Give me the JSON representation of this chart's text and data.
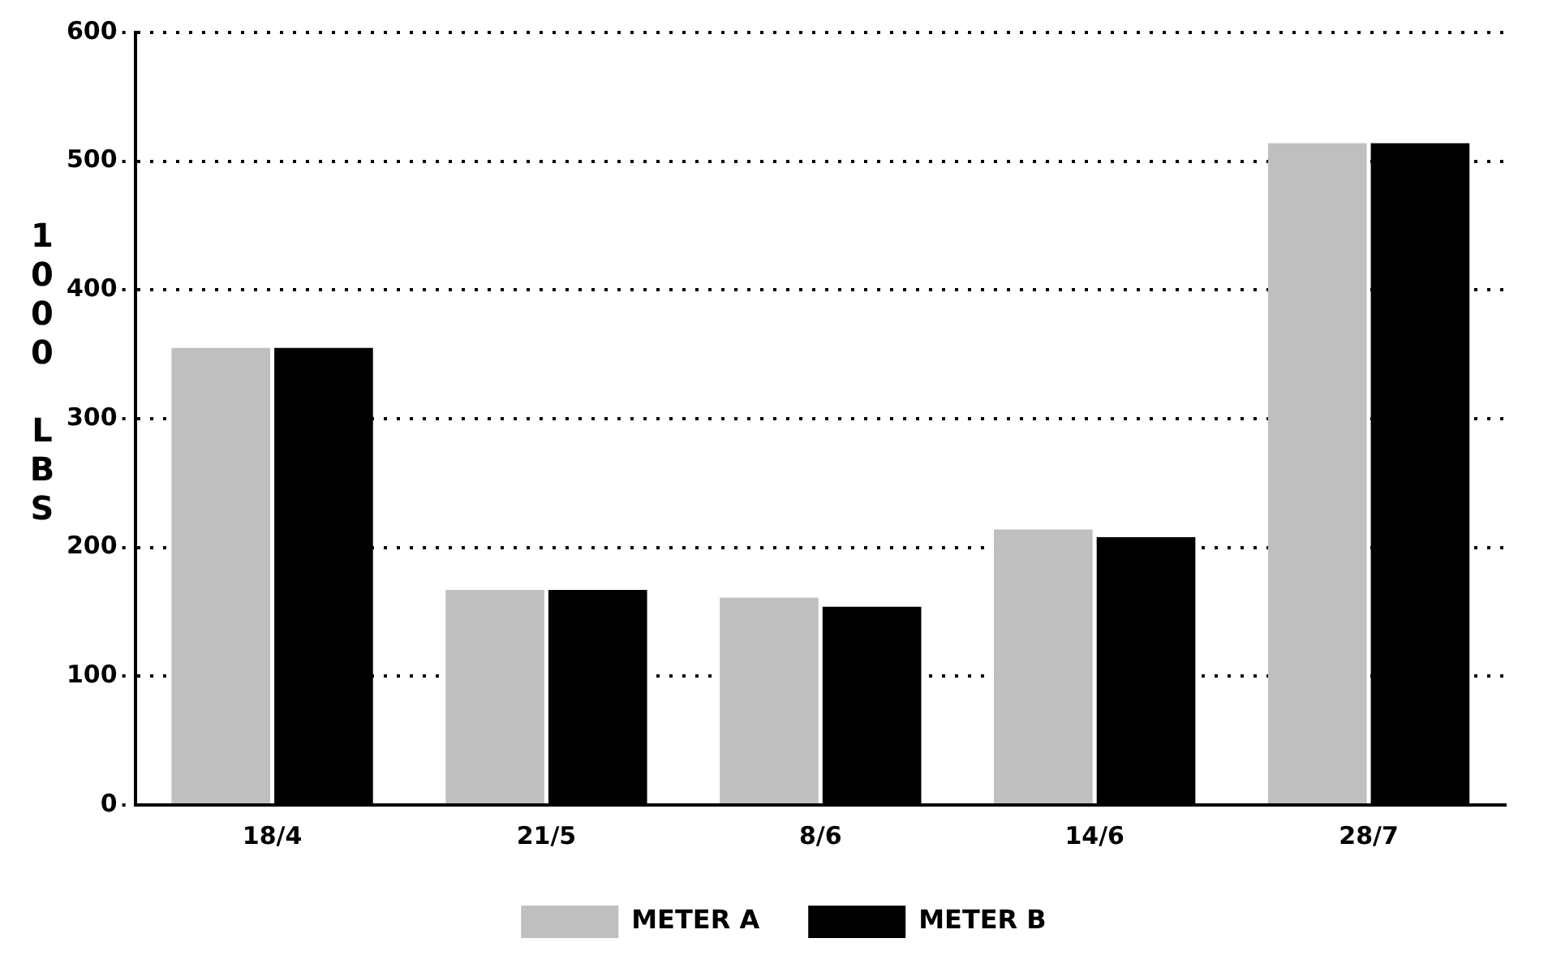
{
  "chart_data": {
    "type": "bar",
    "ylabel": "1000 LBS",
    "categories": [
      "18/4",
      "21/5",
      "8/6",
      "14/6",
      "28/7"
    ],
    "series": [
      {
        "name": "METER A",
        "color": "#bfbfbf",
        "values": [
          355,
          167,
          161,
          214,
          514
        ]
      },
      {
        "name": "METER B",
        "color": "#000000",
        "values": [
          355,
          167,
          154,
          208,
          514
        ]
      }
    ],
    "ylim": [
      0,
      600
    ],
    "yticks": [
      0,
      100,
      200,
      300,
      400,
      500,
      600
    ],
    "grid": "y",
    "legend": "bottom"
  }
}
